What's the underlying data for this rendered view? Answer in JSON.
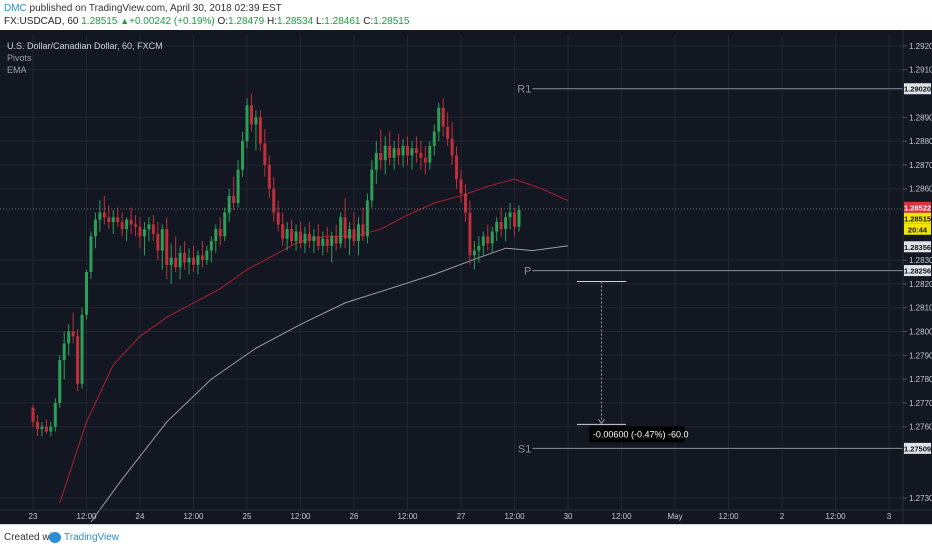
{
  "publish": {
    "user": "DMC",
    "text": " published on TradingView.com, April 30, 2018 02:39 EST"
  },
  "ohlc": {
    "symbol": "FX:USDCAD, 60",
    "last": "1.28515",
    "change": "+0.00242 (+0.19%)",
    "o_label": "O:",
    "o": "1.28479",
    "h_label": "H:",
    "h": "1.28534",
    "l_label": "L:",
    "l": "1.28461",
    "c_label": "C:",
    "c": "1.28515"
  },
  "legend": {
    "title": "U.S. Dollar/Canadian Dollar, 60, FXCM",
    "pivots": "Pivots",
    "ema": "EMA"
  },
  "footer": {
    "created": "Created with",
    "brand": "TradingView"
  },
  "colors": {
    "bg": "#131722",
    "grid": "#232733",
    "text": "#c3c7d0",
    "up": "#2e9e57",
    "down": "#c0303a",
    "ema_fast": "#b0202e",
    "ema_slow": "#9aa0aa",
    "pivot": "#8a8f99",
    "callout_bg": "#000000"
  },
  "chart_data": {
    "type": "candlestick",
    "symbol": "USDCAD",
    "timeframe": "60",
    "ylim": [
      1.2725,
      1.2925
    ],
    "y_ticks": [
      "1.29200",
      "1.29100",
      "1.28900",
      "1.28800",
      "1.28700",
      "1.28600",
      "1.28300",
      "1.28200",
      "1.28100",
      "1.28000",
      "1.27900",
      "1.27800",
      "1.27700",
      "1.27600",
      "1.27300"
    ],
    "x_ticks": [
      {
        "label": "23",
        "t": 0
      },
      {
        "label": "12:00",
        "t": 12
      },
      {
        "label": "24",
        "t": 24
      },
      {
        "label": "12:00",
        "t": 36
      },
      {
        "label": "25",
        "t": 48
      },
      {
        "label": "12:00",
        "t": 60
      },
      {
        "label": "26",
        "t": 72
      },
      {
        "label": "12:00",
        "t": 84
      },
      {
        "label": "27",
        "t": 96
      },
      {
        "label": "12:00",
        "t": 108
      },
      {
        "label": "30",
        "t": 120
      },
      {
        "label": "12:00",
        "t": 132
      },
      {
        "label": "May",
        "t": 144
      },
      {
        "label": "12:00",
        "t": 156
      },
      {
        "label": "2",
        "t": 168
      },
      {
        "label": "12:00",
        "t": 180
      },
      {
        "label": "3",
        "t": 192
      }
    ],
    "price_tags": [
      {
        "value": "1.29020",
        "price": 1.2902,
        "bg": "#e0e3ea",
        "fg": "#111111"
      },
      {
        "value": "1.28522",
        "price": 1.28522,
        "bg": "#e03040",
        "fg": "#ffffff"
      },
      {
        "value": "1.28515",
        "price": 1.28515,
        "bg": "#f2e600",
        "fg": "#111111"
      },
      {
        "value": "20:44",
        "price": 1.2845,
        "bg": "#f2e600",
        "fg": "#111111"
      },
      {
        "value": "1.28356",
        "price": 1.28356,
        "bg": "#e0e3ea",
        "fg": "#111111"
      },
      {
        "value": "1.28256",
        "price": 1.28256,
        "bg": "#e0e3ea",
        "fg": "#111111"
      },
      {
        "value": "1.27509",
        "price": 1.27509,
        "bg": "#e0e3ea",
        "fg": "#111111"
      }
    ],
    "pivots": [
      {
        "name": "R1",
        "value": 1.2902
      },
      {
        "name": "P",
        "value": 1.28256
      },
      {
        "name": "S1",
        "value": 1.27509
      }
    ],
    "measure": {
      "from_t": 122,
      "to_t": 133,
      "from_price": 1.2821,
      "to_price": 1.2761,
      "label": "-0.00600 (-0.47%) -60.0"
    },
    "series": [
      {
        "name": "EMA",
        "points": [
          [
            6,
            1.2728
          ],
          [
            12,
            1.2762
          ],
          [
            18,
            1.2786
          ],
          [
            24,
            1.2798
          ],
          [
            30,
            1.2806
          ],
          [
            36,
            1.2812
          ],
          [
            42,
            1.2818
          ],
          [
            48,
            1.2826
          ],
          [
            54,
            1.2832
          ],
          [
            60,
            1.2838
          ],
          [
            66,
            1.284
          ],
          [
            72,
            1.284
          ],
          [
            78,
            1.2843
          ],
          [
            84,
            1.2849
          ],
          [
            90,
            1.2854
          ],
          [
            96,
            1.2857
          ],
          [
            102,
            1.2861
          ],
          [
            108,
            1.2864
          ],
          [
            114,
            1.286
          ],
          [
            120,
            1.2855
          ]
        ]
      },
      {
        "name": "EMA",
        "points": [
          [
            13,
            1.272
          ],
          [
            20,
            1.2738
          ],
          [
            30,
            1.2762
          ],
          [
            40,
            1.278
          ],
          [
            50,
            1.2793
          ],
          [
            60,
            1.2803
          ],
          [
            70,
            1.2812
          ],
          [
            80,
            1.2818
          ],
          [
            90,
            1.2824
          ],
          [
            100,
            1.2831
          ],
          [
            106,
            1.2835
          ],
          [
            112,
            1.2834
          ],
          [
            120,
            1.2836
          ]
        ]
      }
    ],
    "candles": [
      [
        0,
        1.2768,
        1.2769,
        1.276,
        1.2762
      ],
      [
        1,
        1.2762,
        1.2765,
        1.2756,
        1.2759
      ],
      [
        2,
        1.2759,
        1.2762,
        1.2756,
        1.276
      ],
      [
        3,
        1.276,
        1.2763,
        1.2757,
        1.2758
      ],
      [
        4,
        1.2758,
        1.2762,
        1.2756,
        1.276
      ],
      [
        5,
        1.276,
        1.2772,
        1.2758,
        1.277
      ],
      [
        6,
        1.277,
        1.279,
        1.2768,
        1.2788
      ],
      [
        7,
        1.2788,
        1.28,
        1.278,
        1.2795
      ],
      [
        8,
        1.2795,
        1.2803,
        1.279,
        1.28
      ],
      [
        9,
        1.28,
        1.2808,
        1.2795,
        1.2798
      ],
      [
        10,
        1.2798,
        1.2801,
        1.2775,
        1.2778
      ],
      [
        11,
        1.2778,
        1.281,
        1.2776,
        1.2807
      ],
      [
        12,
        1.2807,
        1.2826,
        1.2805,
        1.2825
      ],
      [
        13,
        1.2825,
        1.2842,
        1.2822,
        1.284
      ],
      [
        14,
        1.284,
        1.285,
        1.2835,
        1.2847
      ],
      [
        15,
        1.2847,
        1.2855,
        1.2842,
        1.285
      ],
      [
        16,
        1.285,
        1.2857,
        1.2845,
        1.2848
      ],
      [
        17,
        1.2848,
        1.2853,
        1.2843,
        1.2846
      ],
      [
        18,
        1.2846,
        1.2851,
        1.2841,
        1.2848
      ],
      [
        19,
        1.2848,
        1.2852,
        1.2844,
        1.2846
      ],
      [
        20,
        1.2846,
        1.285,
        1.284,
        1.2843
      ],
      [
        21,
        1.2843,
        1.2848,
        1.2838,
        1.2847
      ],
      [
        22,
        1.2847,
        1.2852,
        1.2841,
        1.2845
      ],
      [
        23,
        1.2845,
        1.2849,
        1.284,
        1.2844
      ],
      [
        24,
        1.2844,
        1.2848,
        1.2835,
        1.284
      ],
      [
        25,
        1.284,
        1.2846,
        1.2832,
        1.2843
      ],
      [
        26,
        1.2843,
        1.2848,
        1.2838,
        1.2845
      ],
      [
        27,
        1.2845,
        1.2849,
        1.2838,
        1.2841
      ],
      [
        28,
        1.2841,
        1.2846,
        1.283,
        1.2834
      ],
      [
        29,
        1.2834,
        1.2845,
        1.2826,
        1.2843
      ],
      [
        30,
        1.2843,
        1.2848,
        1.2822,
        1.2828
      ],
      [
        31,
        1.2828,
        1.2837,
        1.282,
        1.2831
      ],
      [
        32,
        1.2831,
        1.284,
        1.2825,
        1.2827
      ],
      [
        33,
        1.2827,
        1.2836,
        1.2822,
        1.2833
      ],
      [
        34,
        1.2833,
        1.2838,
        1.2826,
        1.2829
      ],
      [
        35,
        1.2829,
        1.2835,
        1.2824,
        1.2831
      ],
      [
        36,
        1.2831,
        1.2836,
        1.2825,
        1.2828
      ],
      [
        37,
        1.2828,
        1.2834,
        1.2824,
        1.2832
      ],
      [
        38,
        1.2832,
        1.2838,
        1.2827,
        1.283
      ],
      [
        39,
        1.283,
        1.2836,
        1.2828,
        1.2834
      ],
      [
        40,
        1.2834,
        1.284,
        1.2829,
        1.2838
      ],
      [
        41,
        1.2838,
        1.2845,
        1.2833,
        1.2843
      ],
      [
        42,
        1.2843,
        1.2848,
        1.2836,
        1.284
      ],
      [
        43,
        1.284,
        1.2852,
        1.2838,
        1.285
      ],
      [
        44,
        1.285,
        1.286,
        1.2846,
        1.2857
      ],
      [
        45,
        1.2857,
        1.2865,
        1.2851,
        1.2854
      ],
      [
        46,
        1.2854,
        1.2872,
        1.2852,
        1.2868
      ],
      [
        47,
        1.2868,
        1.2884,
        1.2865,
        1.288
      ],
      [
        48,
        1.288,
        1.2898,
        1.2877,
        1.2895
      ],
      [
        49,
        1.2895,
        1.29,
        1.2884,
        1.2887
      ],
      [
        50,
        1.2887,
        1.2893,
        1.2876,
        1.289
      ],
      [
        51,
        1.289,
        1.2893,
        1.2876,
        1.2879
      ],
      [
        52,
        1.2879,
        1.2885,
        1.2865,
        1.287
      ],
      [
        53,
        1.287,
        1.2874,
        1.2856,
        1.286
      ],
      [
        54,
        1.286,
        1.2865,
        1.2846,
        1.285
      ],
      [
        55,
        1.285,
        1.2855,
        1.2842,
        1.2845
      ],
      [
        56,
        1.2845,
        1.285,
        1.2836,
        1.2839
      ],
      [
        57,
        1.2839,
        1.2846,
        1.2834,
        1.2843
      ],
      [
        58,
        1.2843,
        1.2847,
        1.2836,
        1.2838
      ],
      [
        59,
        1.2838,
        1.2845,
        1.2834,
        1.2842
      ],
      [
        60,
        1.2842,
        1.2846,
        1.2835,
        1.2837
      ],
      [
        61,
        1.2837,
        1.2844,
        1.2833,
        1.2841
      ],
      [
        62,
        1.2841,
        1.2846,
        1.2835,
        1.2838
      ],
      [
        63,
        1.2838,
        1.2843,
        1.2833,
        1.284
      ],
      [
        64,
        1.284,
        1.2845,
        1.2834,
        1.2836
      ],
      [
        65,
        1.2836,
        1.2842,
        1.2832,
        1.2839
      ],
      [
        66,
        1.2839,
        1.2844,
        1.2833,
        1.2836
      ],
      [
        67,
        1.2836,
        1.2842,
        1.2829,
        1.284
      ],
      [
        68,
        1.284,
        1.2845,
        1.2834,
        1.2837
      ],
      [
        69,
        1.2837,
        1.285,
        1.2835,
        1.2848
      ],
      [
        70,
        1.2848,
        1.2856,
        1.2835,
        1.2839
      ],
      [
        71,
        1.2839,
        1.2846,
        1.2832,
        1.2843
      ],
      [
        72,
        1.2843,
        1.285,
        1.2836,
        1.2838
      ],
      [
        73,
        1.2838,
        1.2848,
        1.2832,
        1.2845
      ],
      [
        74,
        1.2845,
        1.2852,
        1.2838,
        1.284
      ],
      [
        75,
        1.284,
        1.2858,
        1.2837,
        1.2855
      ],
      [
        76,
        1.2855,
        1.2872,
        1.2852,
        1.2868
      ],
      [
        77,
        1.2868,
        1.288,
        1.2862,
        1.2875
      ],
      [
        78,
        1.2875,
        1.2885,
        1.2868,
        1.2872
      ],
      [
        79,
        1.2872,
        1.2882,
        1.2866,
        1.2878
      ],
      [
        80,
        1.2878,
        1.2884,
        1.287,
        1.2873
      ],
      [
        81,
        1.2873,
        1.288,
        1.2868,
        1.2877
      ],
      [
        82,
        1.2877,
        1.2883,
        1.287,
        1.2874
      ],
      [
        83,
        1.2874,
        1.2881,
        1.2869,
        1.2878
      ],
      [
        84,
        1.2878,
        1.2882,
        1.287,
        1.2874
      ],
      [
        85,
        1.2874,
        1.288,
        1.2868,
        1.2877
      ],
      [
        86,
        1.2877,
        1.2882,
        1.2871,
        1.2875
      ],
      [
        87,
        1.2875,
        1.288,
        1.2868,
        1.2873
      ],
      [
        88,
        1.2873,
        1.2878,
        1.2866,
        1.2871
      ],
      [
        89,
        1.2871,
        1.288,
        1.2868,
        1.2878
      ],
      [
        90,
        1.2878,
        1.2887,
        1.2874,
        1.2884
      ],
      [
        91,
        1.2884,
        1.2896,
        1.288,
        1.2894
      ],
      [
        92,
        1.2894,
        1.2898,
        1.2882,
        1.2886
      ],
      [
        93,
        1.2886,
        1.2892,
        1.2878,
        1.2881
      ],
      [
        94,
        1.2881,
        1.2888,
        1.287,
        1.2874
      ],
      [
        95,
        1.2874,
        1.2878,
        1.286,
        1.2864
      ],
      [
        96,
        1.2864,
        1.2868,
        1.2854,
        1.2858
      ],
      [
        97,
        1.2858,
        1.2862,
        1.2846,
        1.285
      ],
      [
        98,
        1.285,
        1.2855,
        1.2828,
        1.2832
      ],
      [
        99,
        1.2832,
        1.2838,
        1.2826,
        1.2834
      ],
      [
        100,
        1.2834,
        1.284,
        1.2829,
        1.2836
      ],
      [
        101,
        1.2836,
        1.2842,
        1.2832,
        1.284
      ],
      [
        102,
        1.284,
        1.2845,
        1.2834,
        1.2837
      ],
      [
        103,
        1.2837,
        1.2844,
        1.2833,
        1.2842
      ],
      [
        104,
        1.2842,
        1.2848,
        1.2838,
        1.2846
      ],
      [
        105,
        1.2846,
        1.2852,
        1.284,
        1.2843
      ],
      [
        106,
        1.2843,
        1.285,
        1.2838,
        1.2848
      ],
      [
        107,
        1.2848,
        1.2854,
        1.2843,
        1.285
      ],
      [
        108,
        1.285,
        1.2852,
        1.284,
        1.2844
      ],
      [
        109,
        1.2844,
        1.2853,
        1.2842,
        1.2851
      ]
    ]
  }
}
